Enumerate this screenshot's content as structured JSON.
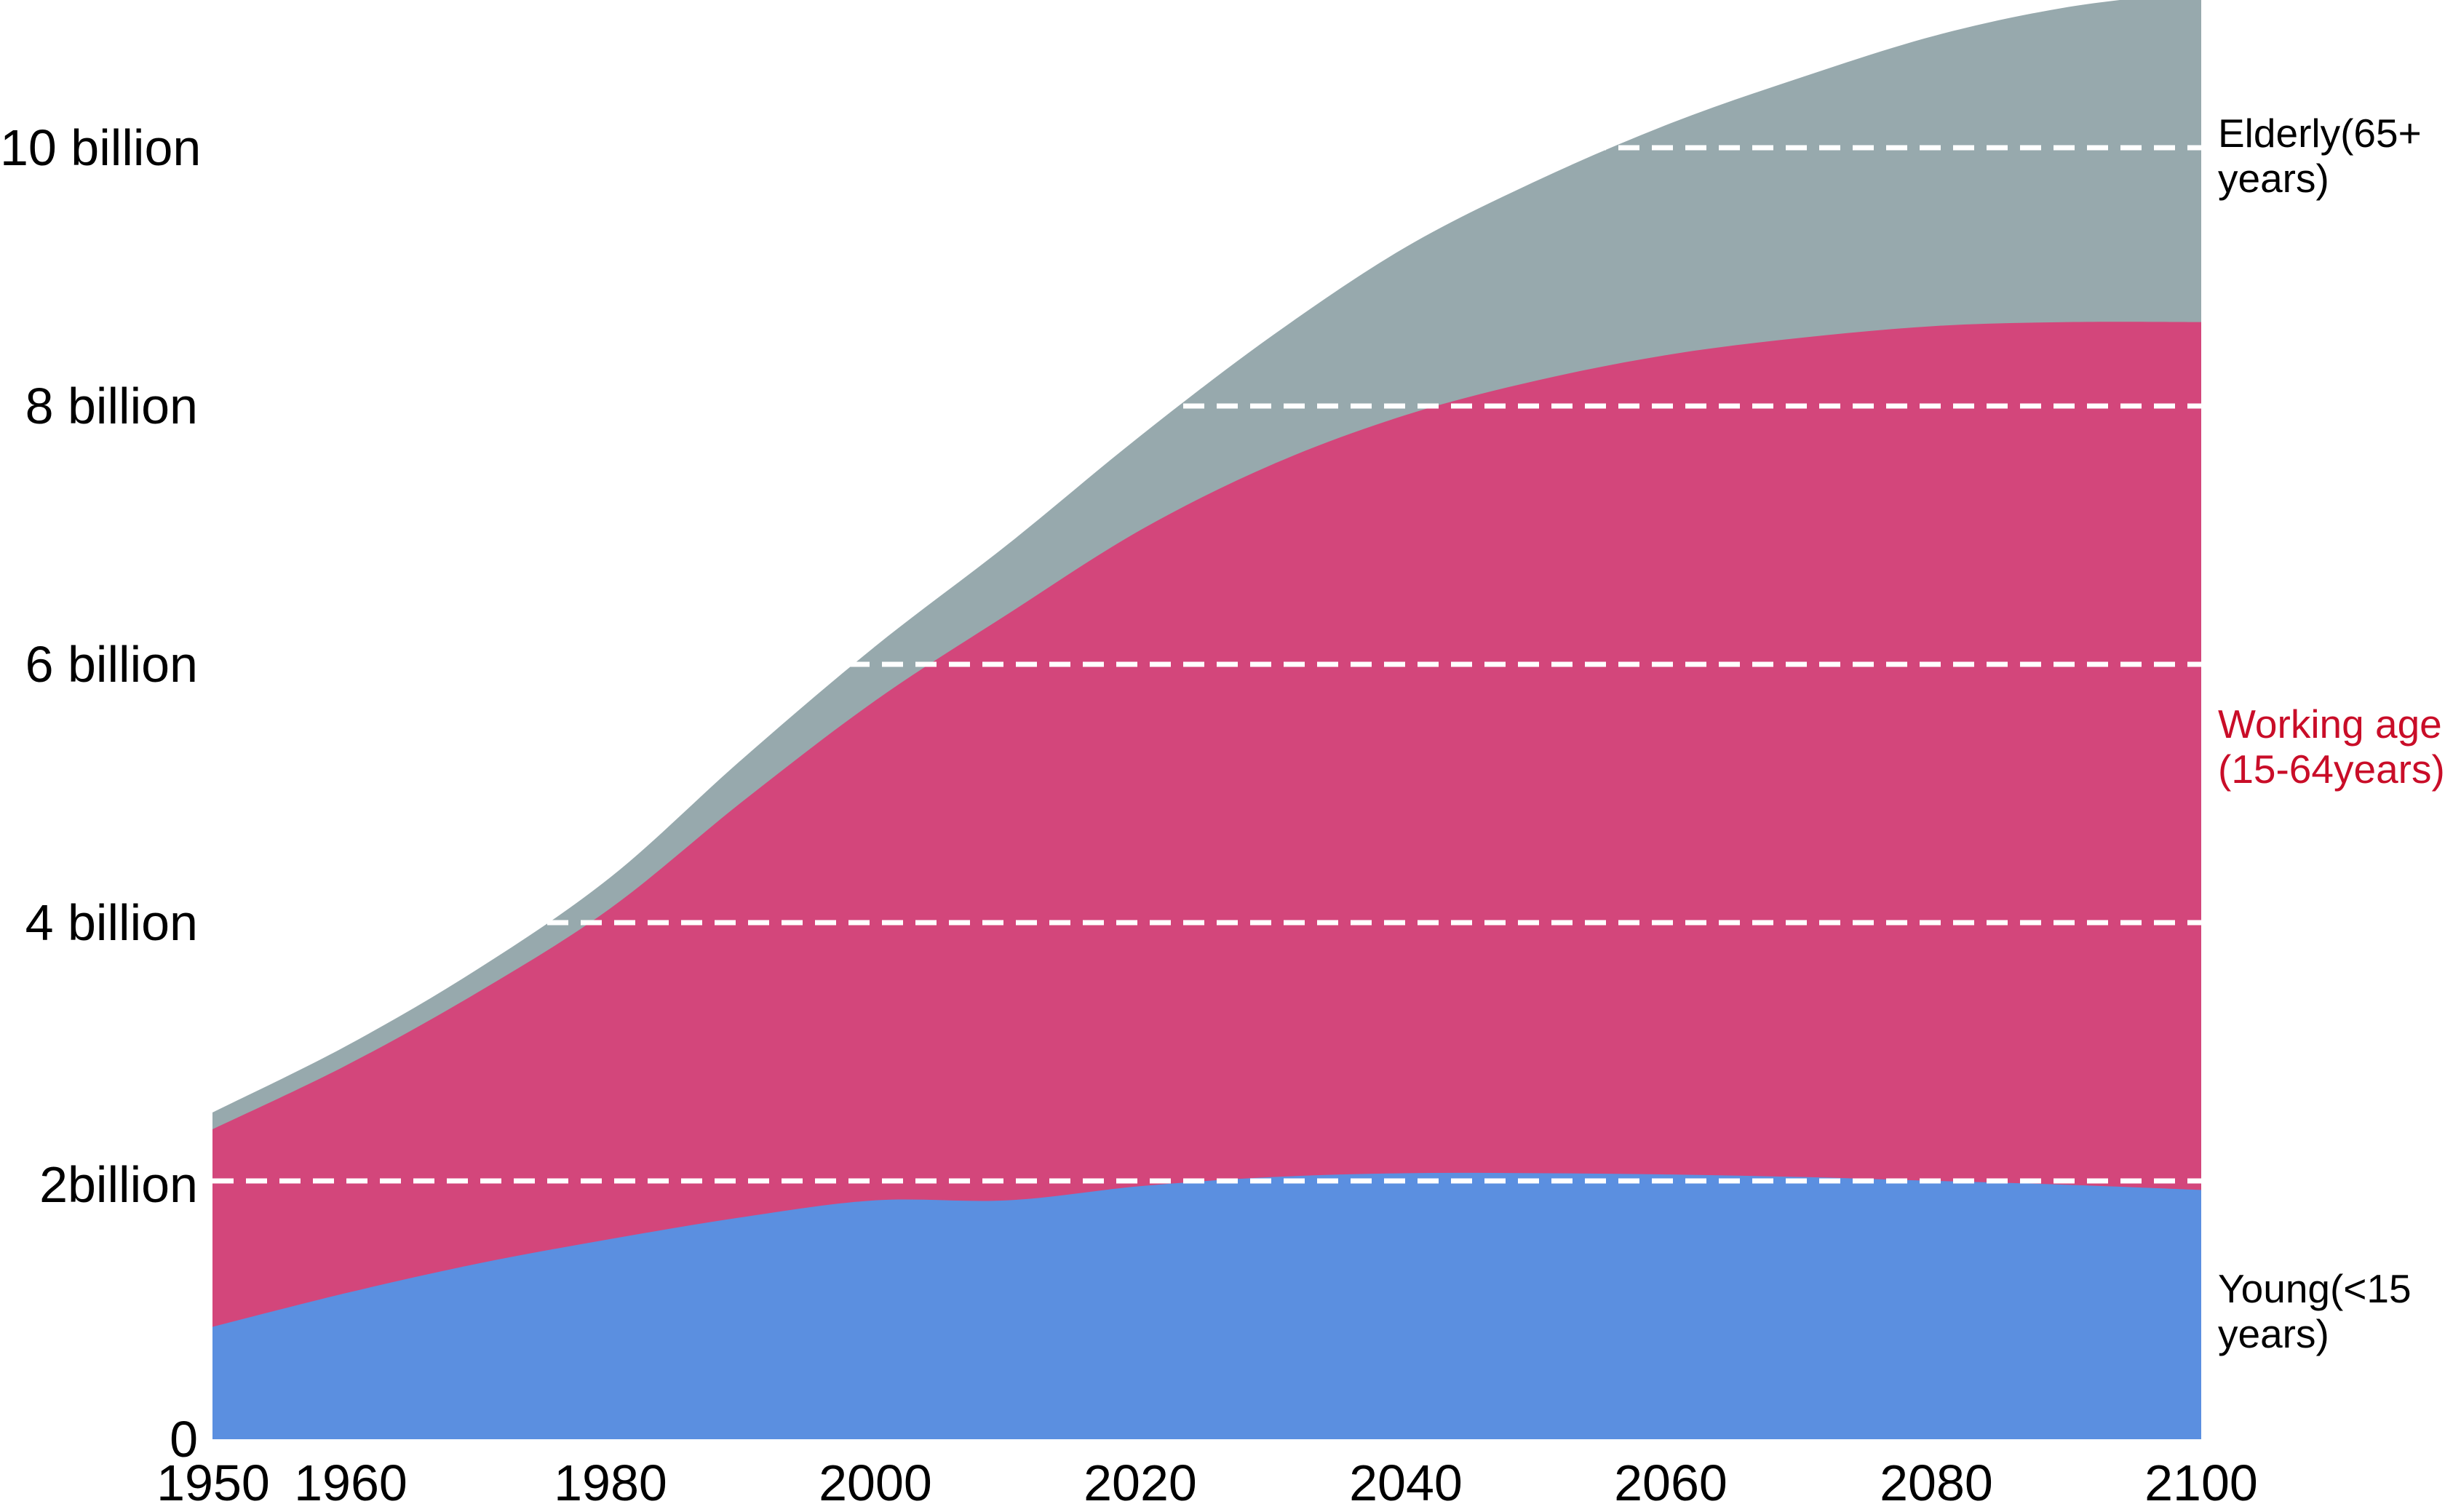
{
  "chart_data": {
    "type": "area",
    "stacked": true,
    "title": "",
    "x_years": [
      1950,
      1960,
      1970,
      1980,
      1990,
      2000,
      2010,
      2020,
      2030,
      2040,
      2050,
      2060,
      2070,
      2080,
      2090,
      2100
    ],
    "series": [
      {
        "name": "Young(<15 years)",
        "color": "#5b8fe0",
        "values": [
          0.87,
          1.13,
          1.36,
          1.55,
          1.72,
          1.85,
          1.85,
          1.96,
          2.03,
          2.06,
          2.06,
          2.05,
          2.03,
          2.0,
          1.97,
          1.93
        ]
      },
      {
        "name": "Working age (15-64years)",
        "color": "#d3467b",
        "values": [
          1.53,
          1.76,
          2.1,
          2.56,
          3.22,
          3.87,
          4.54,
          5.08,
          5.52,
          5.87,
          6.14,
          6.35,
          6.5,
          6.62,
          6.68,
          6.72
        ]
      },
      {
        "name": "Elderly(65+ years)",
        "color": "#97a9ad",
        "values": [
          0.13,
          0.15,
          0.18,
          0.24,
          0.33,
          0.42,
          0.54,
          0.73,
          1.0,
          1.3,
          1.55,
          1.79,
          2.02,
          2.25,
          2.44,
          2.56
        ]
      }
    ],
    "x_axis": {
      "range": [
        1950,
        2100
      ],
      "tick_labels": [
        "1950",
        "1960",
        "1980",
        "2000",
        "2020",
        "2040",
        "2060",
        "2080",
        "2100"
      ],
      "tick_years": [
        1950,
        1960,
        1980,
        2000,
        2020,
        2040,
        2060,
        2080,
        2100
      ]
    },
    "y_axis": {
      "unit": "billion people",
      "range_billions": [
        0,
        11.4
      ],
      "tick_labels": [
        "0",
        "2billion",
        "4 billion",
        "6 billion",
        "8 billion",
        "10 billion"
      ],
      "tick_values": [
        0,
        2,
        4,
        6,
        8,
        10
      ]
    },
    "gridlines": {
      "values_billions": [
        2,
        4,
        6,
        8,
        10
      ],
      "style": "dashed",
      "color": "#ffffff"
    },
    "legend_position": "right side of plot, aligned with each band"
  },
  "labels": {
    "elderly": {
      "line1": "Elderly(65+",
      "line2": "years)",
      "color": "#000000"
    },
    "working": {
      "line1": "Working age",
      "line2": "(15-64years)",
      "color": "#c90d28"
    },
    "young": {
      "line1": "Young(<15",
      "line2": "years)",
      "color": "#000000"
    }
  }
}
